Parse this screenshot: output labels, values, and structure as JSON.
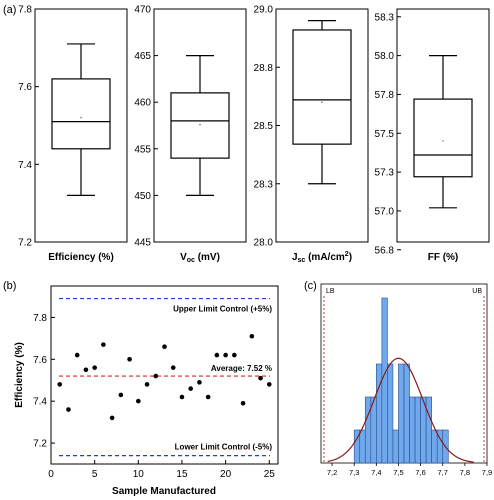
{
  "panel_labels": {
    "a": "(a)",
    "b": "(b)",
    "c": "(c)"
  },
  "chart_data": [
    {
      "type": "box",
      "panel": "(a)",
      "xlabel": "Efficiency (%)",
      "ylim": [
        7.2,
        7.8
      ],
      "yticks": [
        "7.2",
        "7.4",
        "7.6",
        "7.8"
      ],
      "yticks_val": [
        7.2,
        7.4,
        7.6,
        7.8
      ],
      "stats": {
        "min": 7.32,
        "q1": 7.44,
        "median": 7.51,
        "mean": 7.52,
        "q3": 7.62,
        "max": 7.71
      }
    },
    {
      "type": "box",
      "panel": "(a)",
      "xlabel_main": "V",
      "xlabel_sub": "oc",
      "xlabel_unit": " (mV)",
      "ylim": [
        445,
        470
      ],
      "yticks": [
        "445",
        "450",
        "455",
        "460",
        "465",
        "470"
      ],
      "yticks_val": [
        445,
        450,
        455,
        460,
        465,
        470
      ],
      "stats": {
        "min": 450.0,
        "q1": 454.0,
        "median": 458.0,
        "mean": 457.6,
        "q3": 461.0,
        "max": 465.0
      }
    },
    {
      "type": "box",
      "panel": "(a)",
      "xlabel_main": "J",
      "xlabel_sub": "sc",
      "xlabel_unit": " (mA/cm",
      "xlabel_sup": "2",
      "xlabel_end": ")",
      "ylim": [
        28.0,
        29.0
      ],
      "yticks": [
        "28.0",
        "28.3",
        "28.5",
        "28.8",
        "29.0"
      ],
      "yticks_val": [
        28.0,
        28.25,
        28.5,
        28.75,
        29.0
      ],
      "stats": {
        "min": 28.25,
        "q1": 28.42,
        "median": 28.61,
        "mean": 28.6,
        "q3": 28.91,
        "max": 28.95
      }
    },
    {
      "type": "box",
      "panel": "(a)",
      "xlabel": "FF (%)",
      "ylim": [
        56.8,
        58.3
      ],
      "yticks": [
        "56.8",
        "57.0",
        "57.3",
        "57.5",
        "57.8",
        "58.0",
        "58.3"
      ],
      "yticks_val": [
        56.75,
        57.0,
        57.25,
        57.5,
        57.75,
        58.0,
        58.25
      ],
      "stats": {
        "min": 57.02,
        "q1": 57.22,
        "median": 57.36,
        "mean": 57.45,
        "q3": 57.72,
        "max": 58.0
      }
    },
    {
      "type": "scatter",
      "panel": "(b)",
      "xlabel": "Sample Manufactured",
      "ylabel": "Efficiency (%)",
      "xlim": [
        0,
        26
      ],
      "ylim": [
        7.1,
        7.95
      ],
      "xticks": [
        "0",
        "5",
        "10",
        "15",
        "20",
        "25"
      ],
      "xticks_val": [
        0,
        5,
        10,
        15,
        20,
        25
      ],
      "yticks": [
        "7.2",
        "7.4",
        "7.6",
        "7.8"
      ],
      "yticks_val": [
        7.2,
        7.4,
        7.6,
        7.8
      ],
      "x": [
        1,
        2,
        3,
        4,
        5,
        6,
        7,
        8,
        9,
        10,
        11,
        12,
        13,
        14,
        15,
        16,
        17,
        18,
        19,
        20,
        21,
        22,
        23,
        24,
        25
      ],
      "y": [
        7.48,
        7.36,
        7.62,
        7.55,
        7.56,
        7.67,
        7.32,
        7.43,
        7.6,
        7.4,
        7.48,
        7.52,
        7.66,
        7.56,
        7.42,
        7.46,
        7.49,
        7.42,
        7.62,
        7.62,
        7.62,
        7.39,
        7.71,
        7.51,
        7.48
      ],
      "reference_lines": [
        {
          "label": "Upper Limit Control (+5%)",
          "y": 7.89,
          "color": "#1f3fd8"
        },
        {
          "label": "Average: 7.52 %",
          "y": 7.52,
          "color": "#e02424"
        },
        {
          "label": "Lower Limit Control (-5%)",
          "y": 7.14,
          "color": "#1f3fd8"
        }
      ]
    },
    {
      "type": "histogram",
      "panel": "(c)",
      "xlim": [
        7.15,
        7.9
      ],
      "xticks": [
        "7,2",
        "7,3",
        "7,4",
        "7,5",
        "7,6",
        "7,7",
        "7,8",
        "7,9"
      ],
      "xticks_val": [
        7.2,
        7.3,
        7.4,
        7.5,
        7.6,
        7.7,
        7.8,
        7.9
      ],
      "bin_width": 0.025,
      "bin_start": [
        7.3,
        7.325,
        7.35,
        7.375,
        7.4,
        7.425,
        7.45,
        7.475,
        7.5,
        7.525,
        7.55,
        7.575,
        7.6,
        7.625,
        7.65,
        7.675,
        7.7
      ],
      "counts": [
        1,
        1,
        2,
        2,
        3,
        5,
        3,
        1,
        3,
        3,
        2,
        2,
        2,
        2,
        1,
        1,
        1
      ],
      "bar_color": "#6fa8ec",
      "fit_curve": {
        "type": "normal",
        "mean": 7.5,
        "sd": 0.11,
        "color": "#8b1a1a"
      },
      "limit_lines": [
        {
          "label": "LB",
          "x": 7.15,
          "color": "#c0392b"
        },
        {
          "label": "UB",
          "x": 7.9,
          "color": "#c0392b"
        }
      ]
    }
  ]
}
